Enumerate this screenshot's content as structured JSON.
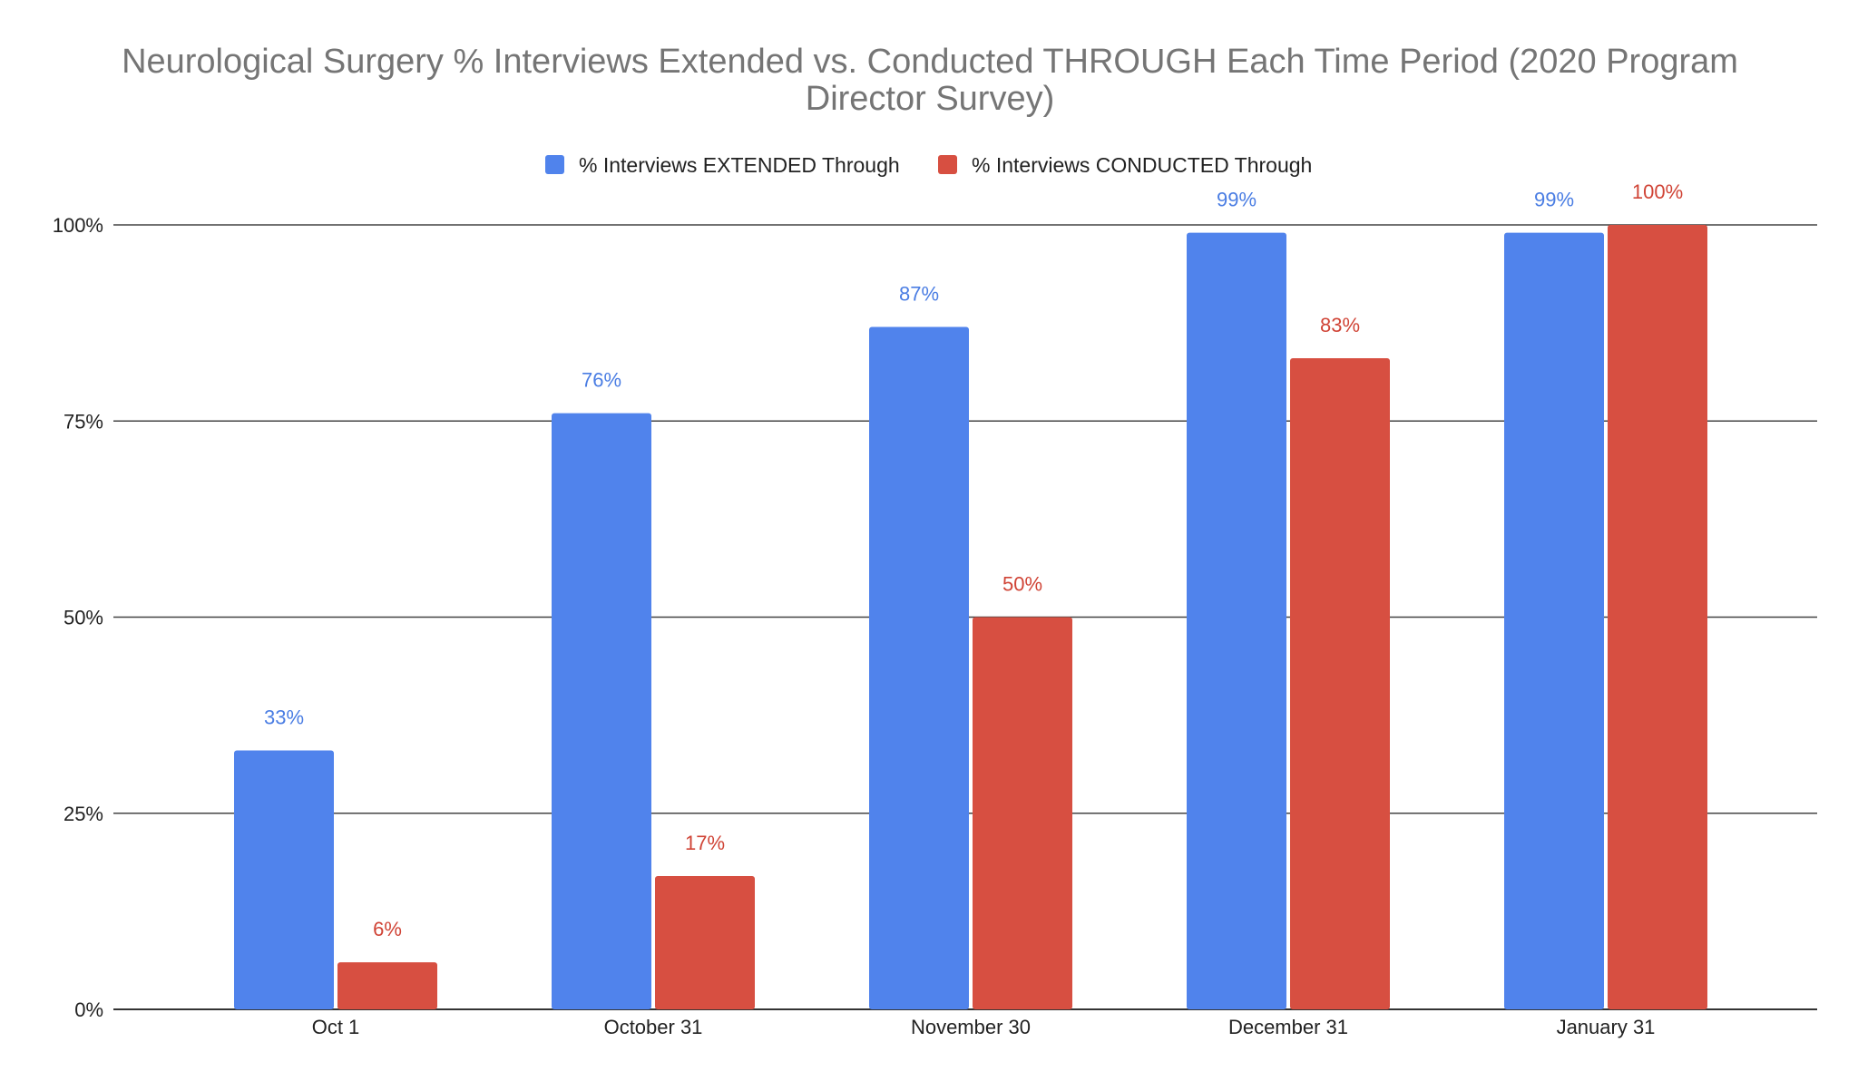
{
  "chart_data": {
    "type": "bar",
    "title_lines": [
      "Neurological Surgery % Interviews Extended vs. Conducted THROUGH Each Time Period (2020 Program",
      "Director Survey)"
    ],
    "categories": [
      "Oct 1",
      "October 31",
      "November 30",
      "December 31",
      "January 31"
    ],
    "series": [
      {
        "name": "% Interviews EXTENDED Through",
        "color": "#5083ec",
        "label_color": "#4a7de3",
        "values": [
          33,
          76,
          87,
          99,
          99
        ],
        "labels": [
          "33%",
          "76%",
          "87%",
          "99%",
          "99%"
        ]
      },
      {
        "name": "% Interviews CONDUCTED Through",
        "color": "#d74f41",
        "label_color": "#d04436",
        "values": [
          6,
          17,
          50,
          83,
          100
        ],
        "labels": [
          "6%",
          "17%",
          "50%",
          "83%",
          "100%"
        ]
      }
    ],
    "yticks": [
      0,
      25,
      50,
      75,
      100
    ],
    "ytick_labels": [
      "0%",
      "25%",
      "50%",
      "75%",
      "100%"
    ],
    "ylim": [
      0,
      100
    ],
    "xlabel": "",
    "ylabel": "",
    "legend_position": "top-center",
    "grid": true
  }
}
